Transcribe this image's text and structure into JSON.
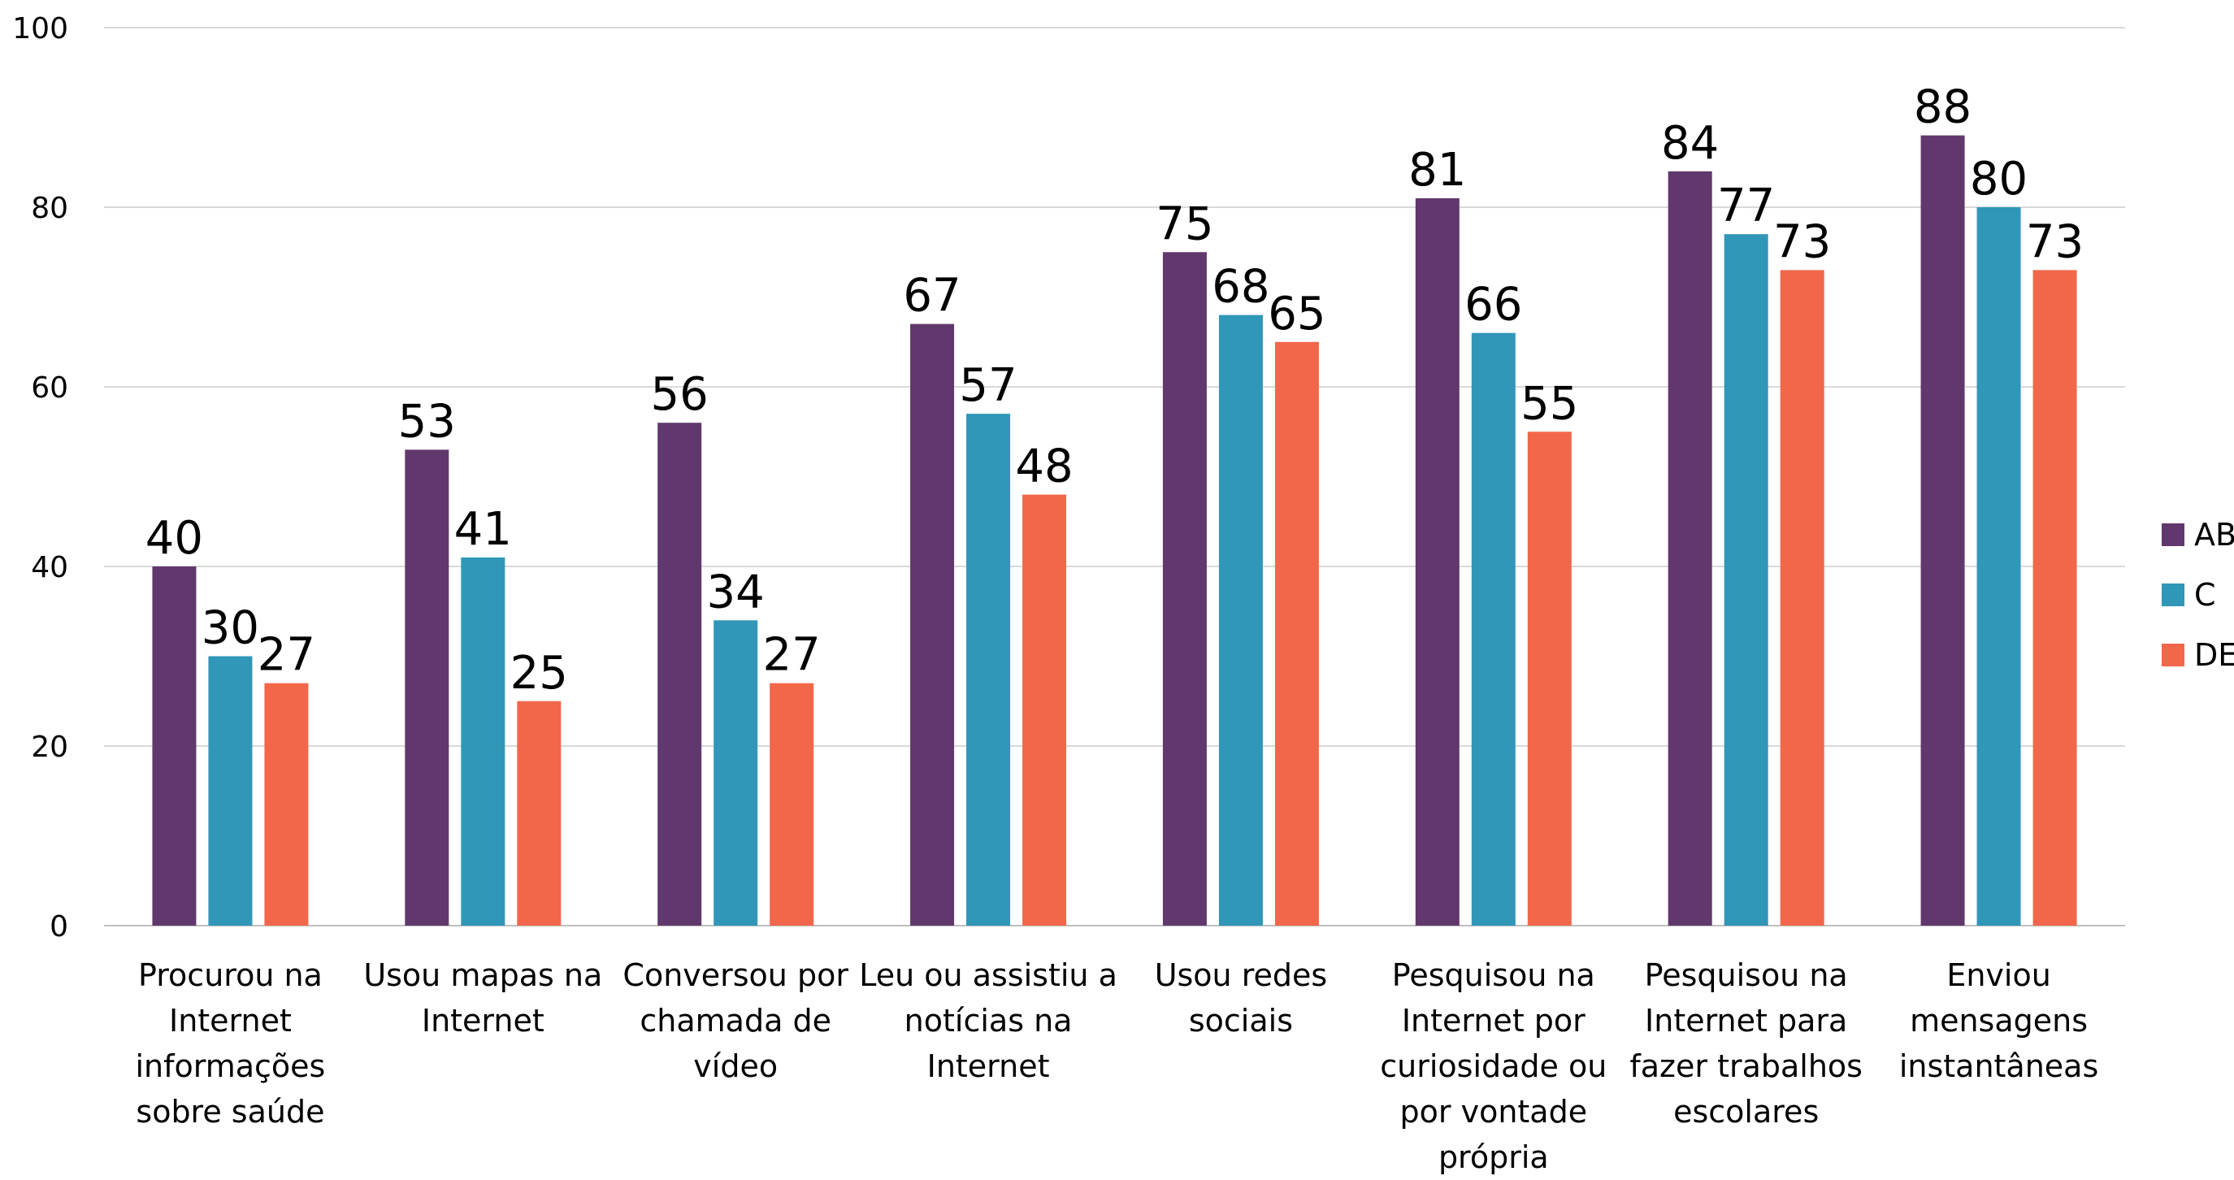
{
  "chart_data": {
    "type": "bar",
    "categories": [
      "Procurou na Internet informações sobre saúde",
      "Usou mapas na Internet",
      "Conversou por chamada de vídeo",
      "Leu ou assistiu a notícias na Internet",
      "Usou redes sociais",
      "Pesquisou na Internet por curiosidade ou por vontade própria",
      "Pesquisou na Internet para fazer trabalhos escolares",
      "Enviou mensagens instantâneas"
    ],
    "category_lines": [
      [
        "Procurou na",
        "Internet",
        "informações",
        "sobre saúde"
      ],
      [
        "Usou mapas na",
        "Internet"
      ],
      [
        "Conversou por",
        "chamada de",
        "vídeo"
      ],
      [
        "Leu ou assistiu a",
        "notícias na",
        "Internet"
      ],
      [
        "Usou redes",
        "sociais"
      ],
      [
        "Pesquisou na",
        "Internet por",
        "curiosidade ou",
        "por vontade",
        "própria"
      ],
      [
        "Pesquisou na",
        "Internet para",
        "fazer trabalhos",
        "escolares"
      ],
      [
        "Enviou",
        "mensagens",
        "instantâneas"
      ]
    ],
    "series": [
      {
        "name": "AB",
        "color": "#61386D",
        "values": [
          40,
          53,
          56,
          67,
          75,
          81,
          84,
          88
        ]
      },
      {
        "name": "C",
        "color": "#3097B8",
        "values": [
          30,
          41,
          34,
          57,
          68,
          66,
          77,
          80
        ]
      },
      {
        "name": "DE",
        "color": "#F2674A",
        "values": [
          27,
          25,
          27,
          48,
          65,
          55,
          73,
          73
        ]
      }
    ],
    "y_ticks": [
      "0",
      "20",
      "40",
      "60",
      "80",
      "100"
    ],
    "ylim": [
      0,
      100
    ],
    "grid": true,
    "legend_position": "right",
    "data_labels": true
  }
}
